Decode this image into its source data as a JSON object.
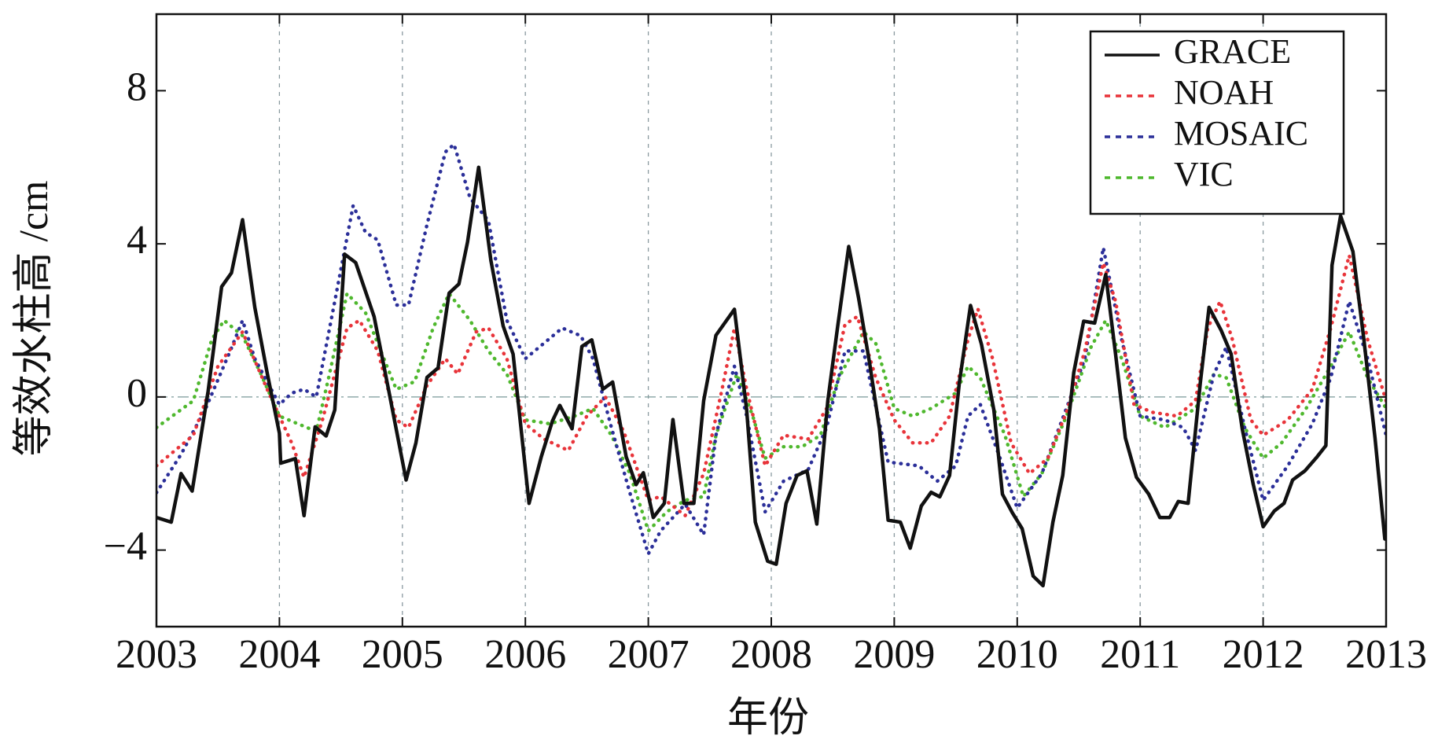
{
  "chart_data": {
    "type": "line",
    "xlabel": "年份",
    "ylabel": "等效水柱高 /cm",
    "xlim": [
      2003,
      2013
    ],
    "xticks": [
      2003,
      2004,
      2005,
      2006,
      2007,
      2008,
      2009,
      2010,
      2011,
      2012,
      2013
    ],
    "ylim": [
      -6,
      10
    ],
    "yticks": [
      {
        "value": -4,
        "label": "−4"
      },
      0,
      4,
      8
    ],
    "xgrid": true,
    "zero_line": true,
    "legend": "upper right",
    "series": [
      {
        "name": "GRACE",
        "color": "#111111",
        "linestyle": "solid",
        "x": [
          2003.0,
          2003.12,
          2003.2,
          2003.29,
          2003.42,
          2003.53,
          2003.61,
          2003.7,
          2003.8,
          2003.9,
          2004.0,
          2004.01,
          2004.13,
          2004.2,
          2004.29,
          2004.38,
          2004.45,
          2004.53,
          2004.62,
          2004.77,
          2004.89,
          2005.03,
          2005.11,
          2005.2,
          2005.29,
          2005.38,
          2005.46,
          2005.53,
          2005.62,
          2005.72,
          2005.82,
          2005.9,
          2006.03,
          2006.13,
          2006.22,
          2006.28,
          2006.38,
          2006.46,
          2006.54,
          2006.63,
          2006.71,
          2006.82,
          2006.9,
          2006.96,
          2007.04,
          2007.13,
          2007.2,
          2007.29,
          2007.37,
          2007.45,
          2007.55,
          2007.7,
          2007.8,
          2007.87,
          2007.97,
          2008.04,
          2008.12,
          2008.21,
          2008.29,
          2008.37,
          2008.46,
          2008.54,
          2008.63,
          2008.71,
          2008.8,
          2008.88,
          2008.95,
          2009.05,
          2009.13,
          2009.22,
          2009.3,
          2009.37,
          2009.45,
          2009.53,
          2009.62,
          2009.71,
          2009.81,
          2009.88,
          2009.96,
          2010.04,
          2010.13,
          2010.21,
          2010.29,
          2010.37,
          2010.46,
          2010.54,
          2010.63,
          2010.72,
          2010.8,
          2010.88,
          2010.97,
          2011.07,
          2011.16,
          2011.24,
          2011.31,
          2011.39,
          2011.49,
          2011.56,
          2011.66,
          2011.74,
          2011.83,
          2011.92,
          2012.0,
          2012.09,
          2012.17,
          2012.24,
          2012.34,
          2012.44,
          2012.51,
          2012.56,
          2012.63,
          2012.73,
          2012.82,
          2012.91,
          2012.99
        ],
        "values": [
          -3.15,
          -3.27,
          -2.0,
          -2.46,
          0.15,
          2.88,
          3.24,
          4.63,
          2.34,
          0.63,
          -0.95,
          -1.73,
          -1.61,
          -3.1,
          -0.78,
          -1.02,
          -0.34,
          3.73,
          3.51,
          2.1,
          0.15,
          -2.17,
          -1.2,
          0.51,
          0.76,
          2.71,
          2.95,
          4.05,
          6.0,
          3.56,
          1.85,
          1.12,
          -2.78,
          -1.56,
          -0.63,
          -0.22,
          -0.83,
          1.32,
          1.49,
          0.2,
          0.39,
          -1.56,
          -2.29,
          -1.98,
          -3.15,
          -2.78,
          -0.59,
          -2.78,
          -2.78,
          -0.1,
          1.61,
          2.29,
          -0.34,
          -3.27,
          -4.29,
          -4.37,
          -2.78,
          -2.05,
          -1.93,
          -3.32,
          -0.1,
          1.85,
          3.93,
          2.59,
          0.88,
          -0.83,
          -3.22,
          -3.27,
          -3.95,
          -2.85,
          -2.49,
          -2.61,
          -2.05,
          0.39,
          2.39,
          1.37,
          -0.34,
          -2.54,
          -3.02,
          -3.44,
          -4.68,
          -4.93,
          -3.27,
          -2.05,
          0.63,
          1.98,
          1.93,
          3.2,
          1.12,
          -1.07,
          -2.1,
          -2.54,
          -3.15,
          -3.15,
          -2.73,
          -2.78,
          0.39,
          2.34,
          1.73,
          1.12,
          -0.83,
          -2.29,
          -3.39,
          -2.98,
          -2.78,
          -2.17,
          -1.93,
          -1.56,
          -1.27,
          3.44,
          4.73,
          3.8,
          1.49,
          -1.07,
          -3.71
        ]
      },
      {
        "name": "NOAH",
        "color": "#e8343a",
        "linestyle": "dotted",
        "x": [
          2003.0,
          2003.3,
          2003.5,
          2003.7,
          2003.9,
          2004.1,
          2004.2,
          2004.35,
          2004.55,
          2004.65,
          2004.8,
          2004.95,
          2005.05,
          2005.2,
          2005.35,
          2005.45,
          2005.6,
          2005.7,
          2005.85,
          2006.0,
          2006.15,
          2006.35,
          2006.5,
          2006.65,
          2006.8,
          2007.0,
          2007.1,
          2007.3,
          2007.45,
          2007.6,
          2007.7,
          2007.8,
          2007.95,
          2008.1,
          2008.3,
          2008.45,
          2008.6,
          2008.7,
          2008.85,
          2009.0,
          2009.15,
          2009.3,
          2009.45,
          2009.6,
          2009.68,
          2009.8,
          2009.95,
          2010.1,
          2010.25,
          2010.4,
          2010.55,
          2010.7,
          2010.8,
          2010.95,
          2011.1,
          2011.3,
          2011.45,
          2011.55,
          2011.65,
          2011.75,
          2011.9,
          2012.0,
          2012.2,
          2012.4,
          2012.55,
          2012.7,
          2012.85,
          2013.0
        ],
        "values": [
          -1.8,
          -1.0,
          0.8,
          1.7,
          0.2,
          -1.2,
          -2.1,
          -0.6,
          1.8,
          2.0,
          1.2,
          -0.6,
          -0.8,
          0.3,
          1.0,
          0.6,
          1.7,
          1.8,
          1.0,
          -0.7,
          -1.1,
          -1.4,
          -0.5,
          0.0,
          -0.9,
          -2.7,
          -2.6,
          -3.1,
          -2.0,
          0.2,
          1.8,
          0.2,
          -1.8,
          -1.0,
          -1.1,
          -0.3,
          1.9,
          2.1,
          0.5,
          -0.6,
          -1.2,
          -1.2,
          -0.5,
          1.5,
          2.3,
          1.0,
          -1.2,
          -2.0,
          -1.6,
          -0.4,
          1.2,
          3.5,
          2.5,
          -0.2,
          -0.4,
          -0.5,
          -0.1,
          1.8,
          2.5,
          1.5,
          -0.6,
          -1.0,
          -0.6,
          0.2,
          1.8,
          3.7,
          1.5,
          -0.1
        ]
      },
      {
        "name": "MOSAIC",
        "color": "#2b2f99",
        "linestyle": "dotted",
        "x": [
          2003.0,
          2003.2,
          2003.4,
          2003.6,
          2003.7,
          2003.8,
          2004.0,
          2004.1,
          2004.2,
          2004.3,
          2004.45,
          2004.6,
          2004.7,
          2004.8,
          2004.95,
          2005.05,
          2005.2,
          2005.35,
          2005.42,
          2005.55,
          2005.7,
          2005.85,
          2006.0,
          2006.15,
          2006.3,
          2006.45,
          2006.55,
          2006.7,
          2006.85,
          2007.0,
          2007.1,
          2007.3,
          2007.45,
          2007.55,
          2007.7,
          2007.8,
          2007.95,
          2008.1,
          2008.3,
          2008.45,
          2008.6,
          2008.75,
          2008.95,
          2009.2,
          2009.35,
          2009.5,
          2009.6,
          2009.7,
          2009.85,
          2010.0,
          2010.2,
          2010.4,
          2010.55,
          2010.7,
          2010.85,
          2011.0,
          2011.2,
          2011.35,
          2011.45,
          2011.6,
          2011.7,
          2011.85,
          2012.0,
          2012.2,
          2012.4,
          2012.55,
          2012.7,
          2012.85,
          2013.0
        ],
        "values": [
          -2.5,
          -1.5,
          -0.3,
          1.2,
          2.0,
          1.0,
          -0.2,
          0.1,
          0.2,
          0.0,
          2.5,
          5.0,
          4.3,
          4.1,
          2.4,
          2.4,
          4.5,
          6.4,
          6.6,
          5.2,
          4.6,
          2.0,
          1.0,
          1.4,
          1.8,
          1.6,
          1.0,
          -0.8,
          -2.5,
          -4.1,
          -3.5,
          -2.8,
          -3.6,
          -1.0,
          0.8,
          -0.5,
          -3.0,
          -2.2,
          -1.9,
          -0.8,
          1.2,
          1.2,
          -1.7,
          -1.8,
          -2.2,
          -1.8,
          -0.5,
          -0.2,
          -1.5,
          -2.9,
          -2.0,
          -0.3,
          1.0,
          3.9,
          1.5,
          -0.5,
          -0.6,
          -0.8,
          -1.4,
          0.6,
          1.3,
          -0.8,
          -2.7,
          -1.8,
          -0.7,
          0.5,
          2.5,
          1.0,
          -1.0
        ]
      },
      {
        "name": "VIC",
        "color": "#4fb82e",
        "linestyle": "dotted",
        "x": [
          2003.0,
          2003.3,
          2003.45,
          2003.55,
          2003.7,
          2003.85,
          2004.0,
          2004.15,
          2004.3,
          2004.4,
          2004.55,
          2004.7,
          2004.85,
          2004.95,
          2005.1,
          2005.25,
          2005.38,
          2005.55,
          2005.7,
          2005.85,
          2006.0,
          2006.2,
          2006.4,
          2006.55,
          2006.7,
          2006.85,
          2007.0,
          2007.15,
          2007.3,
          2007.45,
          2007.55,
          2007.72,
          2007.85,
          2007.95,
          2008.1,
          2008.25,
          2008.4,
          2008.55,
          2008.75,
          2008.85,
          2009.0,
          2009.15,
          2009.3,
          2009.5,
          2009.6,
          2009.7,
          2009.9,
          2010.05,
          2010.2,
          2010.4,
          2010.6,
          2010.72,
          2010.85,
          2011.0,
          2011.2,
          2011.35,
          2011.45,
          2011.6,
          2011.7,
          2011.85,
          2012.0,
          2012.15,
          2012.35,
          2012.55,
          2012.7,
          2012.85,
          2013.0
        ],
        "values": [
          -0.8,
          -0.1,
          1.5,
          2.0,
          1.6,
          0.6,
          -0.5,
          -0.7,
          -0.9,
          0.5,
          2.7,
          2.2,
          1.0,
          0.2,
          0.4,
          1.8,
          2.7,
          2.0,
          1.2,
          0.6,
          -0.6,
          -0.7,
          -0.5,
          -0.3,
          -1.0,
          -2.0,
          -3.5,
          -3.0,
          -2.7,
          -2.6,
          -1.0,
          0.6,
          -0.5,
          -1.6,
          -1.3,
          -1.3,
          -1.0,
          0.5,
          1.7,
          1.4,
          -0.3,
          -0.5,
          -0.3,
          0.1,
          0.8,
          0.5,
          -1.0,
          -2.6,
          -2.0,
          -0.5,
          1.3,
          2.0,
          1.0,
          -0.5,
          -0.8,
          -0.5,
          -0.3,
          0.6,
          0.5,
          -0.8,
          -1.6,
          -1.2,
          -0.3,
          0.8,
          1.7,
          0.5,
          -0.3
        ]
      }
    ]
  }
}
